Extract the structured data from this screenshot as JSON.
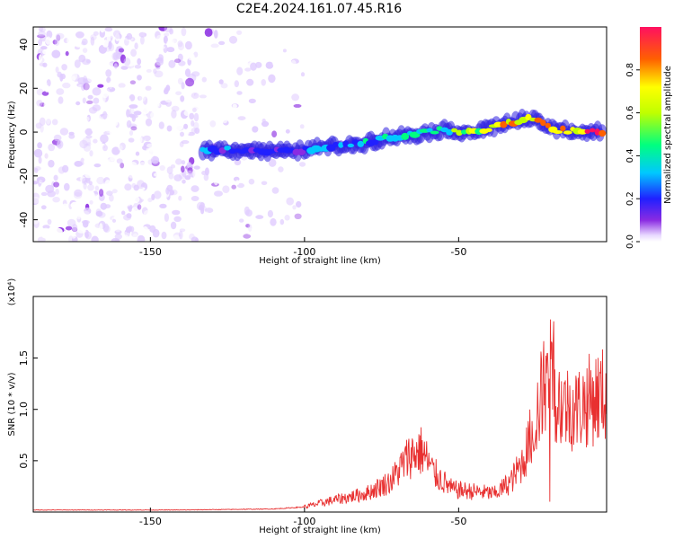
{
  "figure": {
    "title": "C2E4.2024.161.07.45.R16"
  },
  "chart_data": [
    {
      "type": "heatmap",
      "name": "spectrogram",
      "xlabel": "Height of straight line (km)",
      "ylabel": "Frequency (Hz)",
      "xlim": [
        -188,
        -2
      ],
      "ylim": [
        -50,
        48
      ],
      "x_ticks": [
        "-150",
        "-100",
        "-50"
      ],
      "x_tick_values": [
        -150,
        -100,
        -50
      ],
      "y_ticks": [
        "40",
        "20",
        "0",
        "-20",
        "-40"
      ],
      "y_tick_values": [
        40,
        20,
        0,
        -20,
        -40
      ],
      "colorbar": {
        "label": "Normalized spectral amplitude",
        "ticks": [
          "0.0",
          "0.2",
          "0.4",
          "0.6",
          "0.8"
        ],
        "tick_values": [
          0.0,
          0.2,
          0.4,
          0.6,
          0.8
        ],
        "range": [
          0,
          1
        ]
      },
      "ridge": [
        {
          "x": -133,
          "y": -8,
          "amp": 0.35
        },
        {
          "x": -120,
          "y": -8,
          "amp": 0.3
        },
        {
          "x": -105,
          "y": -9,
          "amp": 0.3
        },
        {
          "x": -95,
          "y": -7,
          "amp": 0.35
        },
        {
          "x": -85,
          "y": -6,
          "amp": 0.4
        },
        {
          "x": -75,
          "y": -3,
          "amp": 0.45
        },
        {
          "x": -65,
          "y": -1,
          "amp": 0.5
        },
        {
          "x": -55,
          "y": 1,
          "amp": 0.55
        },
        {
          "x": -45,
          "y": 0,
          "amp": 0.65
        },
        {
          "x": -35,
          "y": 4,
          "amp": 0.75
        },
        {
          "x": -27,
          "y": 6,
          "amp": 0.85
        },
        {
          "x": -18,
          "y": 1,
          "amp": 0.9
        },
        {
          "x": -8,
          "y": 0,
          "amp": 0.95
        },
        {
          "x": -3,
          "y": 0,
          "amp": 0.98
        }
      ]
    },
    {
      "type": "line",
      "name": "snr",
      "xlabel": "Height of straight line (km)",
      "ylabel": "SNR (10 * v/v)",
      "yscale_note": "(x10⁴)",
      "xlim": [
        -188,
        -2
      ],
      "ylim": [
        0,
        2.1
      ],
      "x_ticks": [
        "-150",
        "-100",
        "-50"
      ],
      "x_tick_values": [
        -150,
        -100,
        -50
      ],
      "y_ticks": [
        "0.5",
        "1.0",
        "1.5"
      ],
      "y_tick_values": [
        0.5,
        1.0,
        1.5
      ],
      "color": "#e83030",
      "envelope": [
        {
          "x": -188,
          "y": 0.02
        },
        {
          "x": -140,
          "y": 0.02
        },
        {
          "x": -110,
          "y": 0.03
        },
        {
          "x": -100,
          "y": 0.05
        },
        {
          "x": -90,
          "y": 0.12
        },
        {
          "x": -80,
          "y": 0.18
        },
        {
          "x": -72,
          "y": 0.3
        },
        {
          "x": -66,
          "y": 0.55
        },
        {
          "x": -62,
          "y": 0.6
        },
        {
          "x": -58,
          "y": 0.38
        },
        {
          "x": -52,
          "y": 0.22
        },
        {
          "x": -45,
          "y": 0.2
        },
        {
          "x": -38,
          "y": 0.18
        },
        {
          "x": -33,
          "y": 0.3
        },
        {
          "x": -29,
          "y": 0.5
        },
        {
          "x": -25,
          "y": 0.9
        },
        {
          "x": -21,
          "y": 1.4
        },
        {
          "x": -17,
          "y": 1.05
        },
        {
          "x": -12,
          "y": 1.0
        },
        {
          "x": -7,
          "y": 1.1
        },
        {
          "x": -2,
          "y": 1.15
        }
      ]
    }
  ]
}
